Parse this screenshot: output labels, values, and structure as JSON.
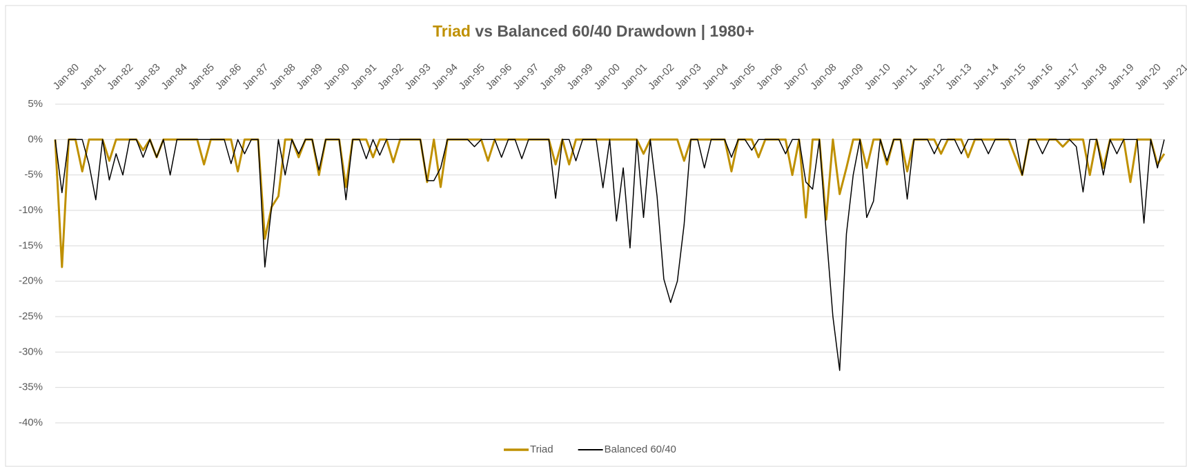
{
  "chart_data": {
    "type": "line",
    "title": [
      "Triad",
      " vs Balanced 60/40 Drawdown | 1980+"
    ],
    "categories": [
      "Jan-80",
      null,
      null,
      null,
      "Jan-81",
      null,
      null,
      null,
      "Jan-82",
      null,
      null,
      null,
      "Jan-83",
      null,
      null,
      null,
      "Jan-84",
      null,
      null,
      null,
      "Jan-85",
      null,
      null,
      null,
      "Jan-86",
      null,
      null,
      null,
      "Jan-87",
      null,
      null,
      null,
      "Jan-88",
      null,
      null,
      null,
      "Jan-89",
      null,
      null,
      null,
      "Jan-90",
      null,
      null,
      null,
      "Jan-91",
      null,
      null,
      null,
      "Jan-92",
      null,
      null,
      null,
      "Jan-93",
      null,
      null,
      null,
      "Jan-94",
      null,
      null,
      null,
      "Jan-95",
      null,
      null,
      null,
      "Jan-96",
      null,
      null,
      null,
      "Jan-97",
      null,
      null,
      null,
      "Jan-98",
      null,
      null,
      null,
      "Jan-99",
      null,
      null,
      null,
      "Jan-00",
      null,
      null,
      null,
      "Jan-01",
      null,
      null,
      null,
      "Jan-02",
      null,
      null,
      null,
      "Jan-03",
      null,
      null,
      null,
      "Jan-04",
      null,
      null,
      null,
      "Jan-05",
      null,
      null,
      null,
      "Jan-06",
      null,
      null,
      null,
      "Jan-07",
      null,
      null,
      null,
      "Jan-08",
      null,
      null,
      null,
      "Jan-09",
      null,
      null,
      null,
      "Jan-10",
      null,
      null,
      null,
      "Jan-11",
      null,
      null,
      null,
      "Jan-12",
      null,
      null,
      null,
      "Jan-13",
      null,
      null,
      null,
      "Jan-14",
      null,
      null,
      null,
      "Jan-15",
      null,
      null,
      null,
      "Jan-16",
      null,
      null,
      null,
      "Jan-17",
      null,
      null,
      null,
      "Jan-18",
      null,
      null,
      null,
      "Jan-19",
      null,
      null,
      null,
      "Jan-20",
      null,
      null,
      null,
      "Jan-21"
    ],
    "series": [
      {
        "name": "Triad",
        "color": "#bf9000",
        "width": 3,
        "values": [
          0,
          -18,
          0,
          0,
          -4.5,
          0,
          0,
          0,
          -3,
          0,
          0,
          0,
          0,
          -1.5,
          0,
          -2.5,
          0,
          0,
          0,
          0,
          0,
          0,
          -3.5,
          0,
          0,
          0,
          0,
          -4.5,
          0,
          0,
          0,
          -14,
          -9.5,
          -8,
          0,
          0,
          -2.5,
          0,
          0,
          -5,
          0,
          0,
          0,
          -6.7,
          0,
          0,
          0,
          -2.5,
          0,
          0,
          -3.2,
          0,
          0,
          0,
          0,
          -6,
          0,
          -6.7,
          0,
          0,
          0,
          0,
          0,
          0,
          -3,
          0,
          0,
          0,
          0,
          0,
          0,
          0,
          0,
          0,
          -3.5,
          0,
          -3.5,
          0,
          0,
          0,
          0,
          0,
          0,
          0,
          0,
          0,
          0,
          -2,
          0,
          0,
          0,
          0,
          0,
          -3,
          0,
          0,
          0,
          0,
          0,
          0,
          -4.5,
          0,
          0,
          0,
          -2.5,
          0,
          0,
          0,
          0,
          -5,
          0,
          -11,
          0,
          0,
          -11.3,
          0,
          -7.7,
          -4,
          0,
          0,
          -4,
          0,
          0,
          -3.5,
          0,
          0,
          -4.5,
          0,
          0,
          0,
          0,
          -2,
          0,
          0,
          0,
          -2.5,
          0,
          0,
          0,
          0,
          0,
          0,
          -2.5,
          -5,
          0,
          0,
          0,
          0,
          0,
          -1,
          0,
          0,
          0,
          -5,
          0,
          -4,
          0,
          0,
          0,
          -6,
          0,
          0,
          0,
          -3.5,
          -2
        ]
      },
      {
        "name": "Balanced 60/40",
        "color": "#000000",
        "width": 1.5,
        "values": [
          0,
          -7.5,
          0,
          0,
          0,
          -3.5,
          -8.5,
          0,
          -5.7,
          -2,
          -5,
          0,
          0,
          -2.5,
          0,
          -2.5,
          0,
          -5,
          0,
          0,
          0,
          0,
          0,
          0,
          0,
          0,
          -3.4,
          0,
          -2,
          0,
          0,
          -18,
          -9.5,
          0,
          -5,
          0,
          -2,
          0,
          0,
          -4.3,
          0,
          0,
          0,
          -8.5,
          0,
          0,
          -2.7,
          0,
          -2.2,
          0,
          0,
          0,
          0,
          0,
          0,
          -5.8,
          -5.8,
          -4,
          0,
          0,
          0,
          0,
          -1,
          0,
          0,
          0,
          -2.5,
          0,
          0,
          -2.7,
          0,
          0,
          0,
          0,
          -8.3,
          0,
          0,
          -3,
          0,
          0,
          0,
          -6.8,
          0,
          -11.5,
          -4,
          -15.3,
          0,
          -11,
          0,
          -8,
          -19.7,
          -23,
          -20,
          -12,
          0,
          0,
          -4,
          0,
          0,
          0,
          -2.5,
          0,
          0,
          -1.5,
          0,
          0,
          0,
          0,
          -2,
          0,
          0,
          -6,
          -7,
          0,
          -13,
          -25,
          -32.6,
          -13.3,
          -5,
          0,
          -11,
          -8.7,
          0,
          -3,
          0,
          0,
          -8.4,
          0,
          0,
          0,
          -2,
          0,
          0,
          0,
          -2,
          0,
          0,
          0,
          -2,
          0,
          0,
          0,
          0,
          -5,
          0,
          0,
          -2,
          0,
          0,
          0,
          0,
          -1,
          -7.4,
          0,
          0,
          -5,
          0,
          -2,
          0,
          0,
          0,
          -11.8,
          0,
          -4,
          0
        ]
      }
    ],
    "ylim": [
      -40,
      5
    ],
    "yticks": [
      {
        "value": 5,
        "label": "5%"
      },
      {
        "value": 0,
        "label": "0%"
      },
      {
        "value": -5,
        "label": "-5%"
      },
      {
        "value": -10,
        "label": "-10%"
      },
      {
        "value": -15,
        "label": "-15%"
      },
      {
        "value": -20,
        "label": "-20%"
      },
      {
        "value": -25,
        "label": "-25%"
      },
      {
        "value": -30,
        "label": "-30%"
      },
      {
        "value": -35,
        "label": "-35%"
      },
      {
        "value": -40,
        "label": "-40%"
      }
    ],
    "grid": true,
    "legend": "bottom"
  }
}
